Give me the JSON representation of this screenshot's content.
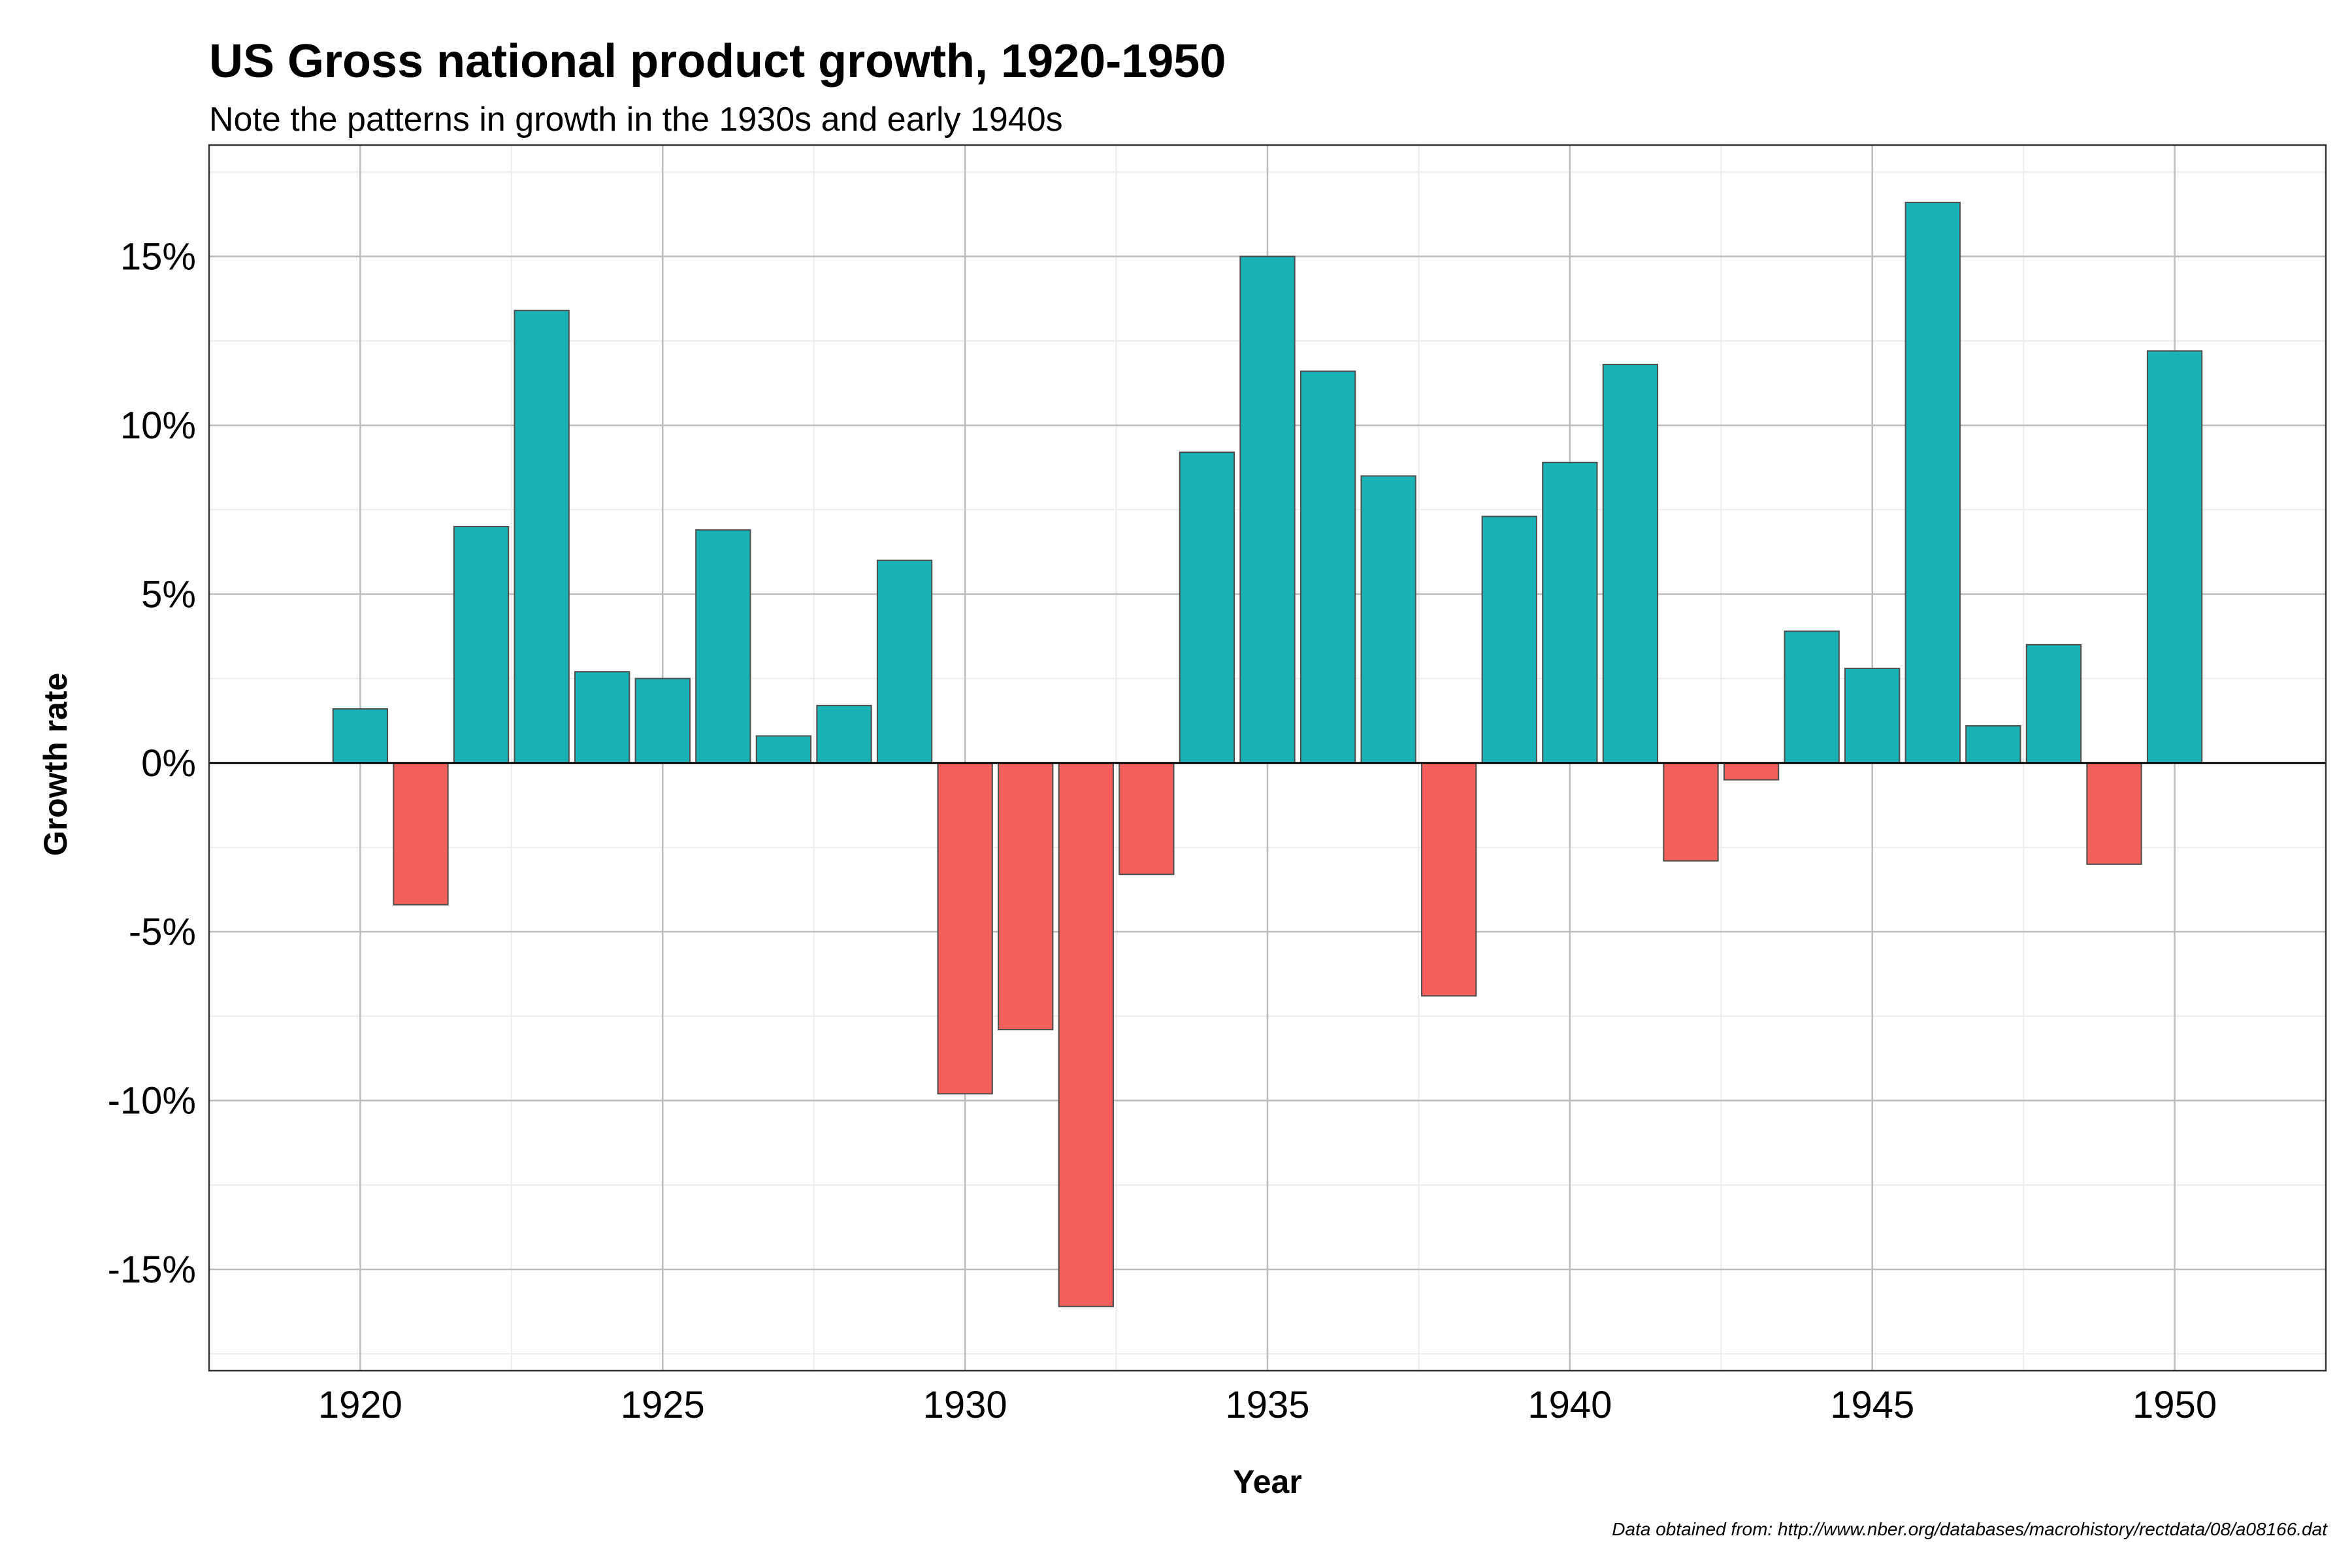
{
  "chart_data": {
    "type": "bar",
    "title": "US Gross national product growth, 1920-1950",
    "subtitle": "Note the patterns in growth in the 1930s and early 1940s",
    "xlabel": "Year",
    "ylabel": "Growth rate",
    "caption": "Data obtained from: http://www.nber.org/databases/macrohistory/rectdata/08/a08166.dat",
    "x": [
      1920,
      1921,
      1922,
      1923,
      1924,
      1925,
      1926,
      1927,
      1928,
      1929,
      1930,
      1931,
      1932,
      1933,
      1934,
      1935,
      1936,
      1937,
      1938,
      1939,
      1940,
      1941,
      1942,
      1943,
      1944,
      1945,
      1946,
      1947,
      1948,
      1949,
      1950
    ],
    "values": [
      1.6,
      -4.2,
      7.0,
      13.4,
      2.7,
      2.5,
      6.9,
      0.8,
      1.7,
      6.0,
      -9.8,
      -7.9,
      -16.1,
      -3.3,
      9.2,
      15.0,
      11.6,
      8.5,
      -6.9,
      7.3,
      8.9,
      11.8,
      -2.9,
      -0.5,
      3.9,
      2.8,
      16.6,
      1.1,
      3.5,
      -3.0,
      12.2
    ],
    "xlim": [
      1917.5,
      1952.5
    ],
    "ylim": [
      -18,
      18.3
    ],
    "xticks": [
      1920,
      1925,
      1930,
      1935,
      1940,
      1945,
      1950
    ],
    "xtick_labels": [
      "1920",
      "1925",
      "1930",
      "1935",
      "1940",
      "1945",
      "1950"
    ],
    "yticks": [
      -15,
      -10,
      -5,
      0,
      5,
      10,
      15
    ],
    "ytick_labels": [
      "-15%",
      "-10%",
      "-5%",
      "0%",
      "5%",
      "10%",
      "15%"
    ],
    "colors": {
      "positive": "#19b3b7",
      "negative": "#f35f5b",
      "bar_outline": "#4d4d4d",
      "grid_major": "#bdbdbd",
      "grid_minor": "#ececec",
      "zero_line": "#000000",
      "panel_border": "#333333"
    },
    "grid": true,
    "legend": "none"
  }
}
